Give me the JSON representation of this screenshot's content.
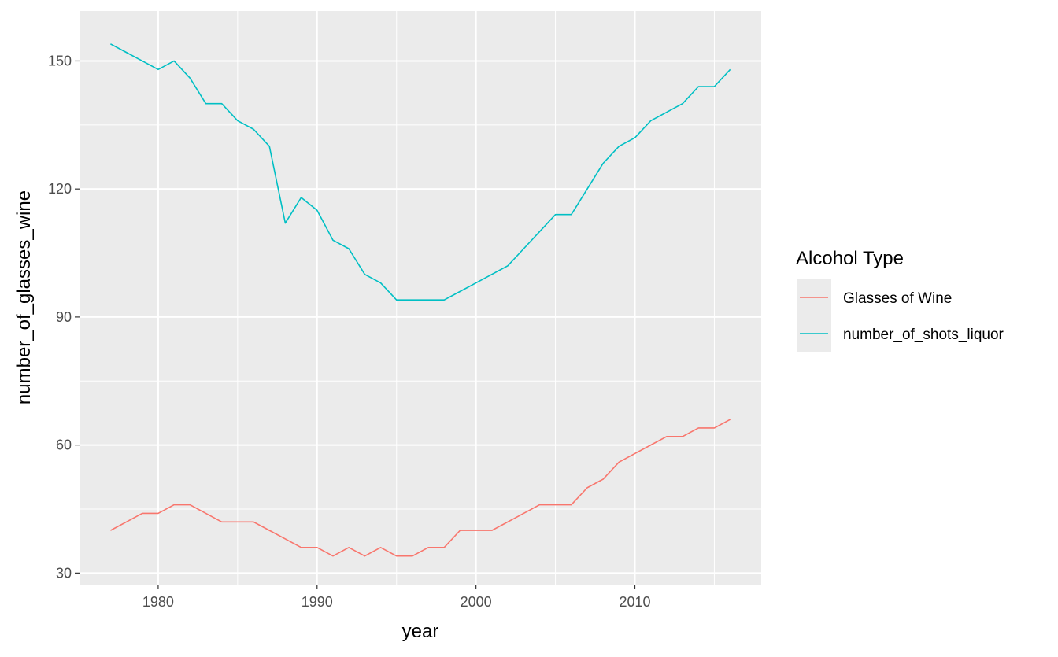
{
  "chart_data": {
    "type": "line",
    "xlabel": "year",
    "ylabel": "number_of_glasses_wine",
    "xlim": [
      1975.05,
      2017.95
    ],
    "ylim": [
      27.3,
      161.7
    ],
    "x_ticks": [
      1980,
      1990,
      2000,
      2010
    ],
    "y_ticks": [
      30,
      60,
      90,
      120,
      150
    ],
    "x_tick_labels": [
      "1980",
      "1990",
      "2000",
      "2010"
    ],
    "y_tick_labels": [
      "30",
      "60",
      "90",
      "120",
      "150"
    ],
    "grid": true,
    "legend_title": "Alcohol Type",
    "legend_position": "right",
    "x": [
      1977,
      1978,
      1979,
      1980,
      1981,
      1982,
      1983,
      1984,
      1985,
      1986,
      1987,
      1988,
      1989,
      1990,
      1991,
      1992,
      1993,
      1994,
      1995,
      1996,
      1997,
      1998,
      1999,
      2000,
      2001,
      2002,
      2003,
      2004,
      2005,
      2006,
      2007,
      2008,
      2009,
      2010,
      2011,
      2012,
      2013,
      2014,
      2015,
      2016
    ],
    "series": [
      {
        "name": "Glasses of Wine",
        "color": "#F8766D",
        "values": [
          40,
          42,
          44,
          44,
          46,
          46,
          44,
          42,
          42,
          42,
          40,
          38,
          36,
          36,
          34,
          36,
          34,
          36,
          34,
          34,
          36,
          36,
          40,
          40,
          40,
          42,
          44,
          46,
          46,
          46,
          50,
          52,
          56,
          58,
          60,
          62,
          62,
          64,
          64,
          66
        ]
      },
      {
        "name": "number_of_shots_liquor",
        "color": "#00BFC4",
        "values": [
          154,
          152,
          150,
          148,
          150,
          146,
          140,
          140,
          136,
          134,
          130,
          112,
          118,
          115,
          108,
          106,
          100,
          98,
          94,
          94,
          94,
          94,
          96,
          98,
          100,
          102,
          106,
          110,
          114,
          114,
          120,
          126,
          130,
          132,
          136,
          138,
          140,
          144,
          144,
          148
        ]
      }
    ]
  }
}
